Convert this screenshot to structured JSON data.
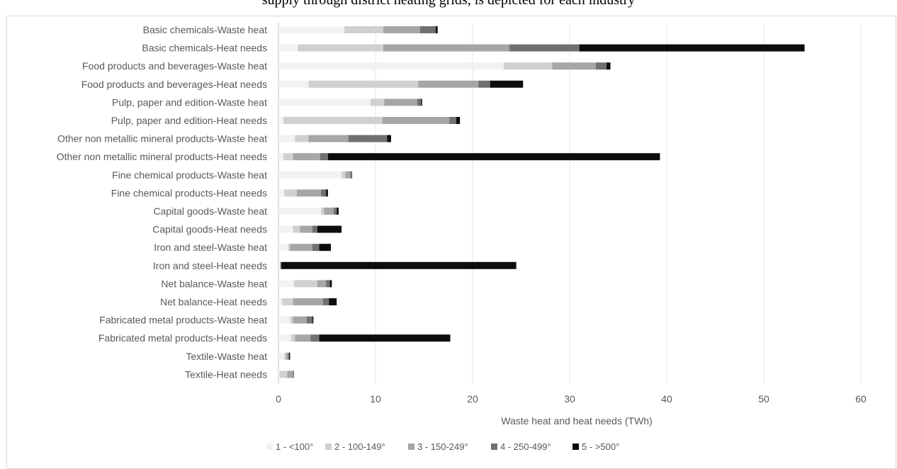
{
  "caption_fragment": "supply through district heating grids, is depicted for each industry",
  "chart_data": {
    "type": "bar",
    "orientation": "horizontal",
    "stacked": true,
    "xlabel": "Waste heat and heat needs (TWh)",
    "ylabel": "",
    "xlim": [
      0,
      60
    ],
    "xticks": [
      0,
      10,
      20,
      30,
      40,
      50,
      60
    ],
    "grid": "vertical",
    "legend_position": "bottom",
    "categories": [
      "Basic chemicals-Waste heat",
      "Basic chemicals-Heat needs",
      "Food products and beverages-Waste heat",
      "Food products and beverages-Heat needs",
      "Pulp, paper and edition-Waste heat",
      "Pulp, paper and edition-Heat needs",
      "Other non metallic mineral products-Waste heat",
      "Other non metallic mineral products-Heat needs",
      "Fine chemical products-Waste heat",
      "Fine chemical products-Heat needs",
      "Capital goods-Waste heat",
      "Capital goods-Heat needs",
      "Iron and steel-Waste heat",
      "Iron and steel-Heat needs",
      "Net balance-Waste heat",
      "Net balance-Heat needs",
      "Fabricated metal products-Waste heat",
      "Fabricated metal products-Heat needs",
      "Textile-Waste heat",
      "Textile-Heat needs"
    ],
    "series": [
      {
        "name": "1 - <100°",
        "color": "#f2f2f2",
        "values": [
          6.8,
          2.0,
          23.2,
          3.1,
          9.5,
          0.5,
          1.7,
          0.5,
          6.5,
          0.6,
          4.4,
          1.5,
          1.0,
          0.2,
          1.6,
          0.4,
          1.2,
          1.3,
          0.6,
          0.1
        ]
      },
      {
        "name": "2 - 100-149°",
        "color": "#d0d0d0",
        "values": [
          4.0,
          8.8,
          5.0,
          11.3,
          1.4,
          10.2,
          1.4,
          1.0,
          0.4,
          1.3,
          0.3,
          0.7,
          0.2,
          0.0,
          2.4,
          1.1,
          0.3,
          0.4,
          0.2,
          0.8
        ]
      },
      {
        "name": "3 - 150-249°",
        "color": "#a6a6a6",
        "values": [
          3.8,
          13.0,
          4.5,
          6.2,
          3.4,
          6.9,
          4.1,
          2.8,
          0.5,
          2.5,
          1.0,
          1.3,
          2.3,
          0.0,
          0.9,
          3.1,
          1.4,
          1.6,
          0.2,
          0.6
        ]
      },
      {
        "name": "4 - 250-499°",
        "color": "#707070",
        "values": [
          1.6,
          7.2,
          1.1,
          1.2,
          0.4,
          0.7,
          4.0,
          0.8,
          0.2,
          0.5,
          0.3,
          0.5,
          0.7,
          0.1,
          0.4,
          0.6,
          0.6,
          0.9,
          0.1,
          0.1
        ]
      },
      {
        "name": "5 - >500°",
        "color": "#0d0d0d",
        "values": [
          0.2,
          23.2,
          0.4,
          3.4,
          0.1,
          0.4,
          0.4,
          34.2,
          0.0,
          0.2,
          0.2,
          2.5,
          1.2,
          24.2,
          0.2,
          0.8,
          0.1,
          13.5,
          0.1,
          0.0
        ]
      }
    ]
  }
}
